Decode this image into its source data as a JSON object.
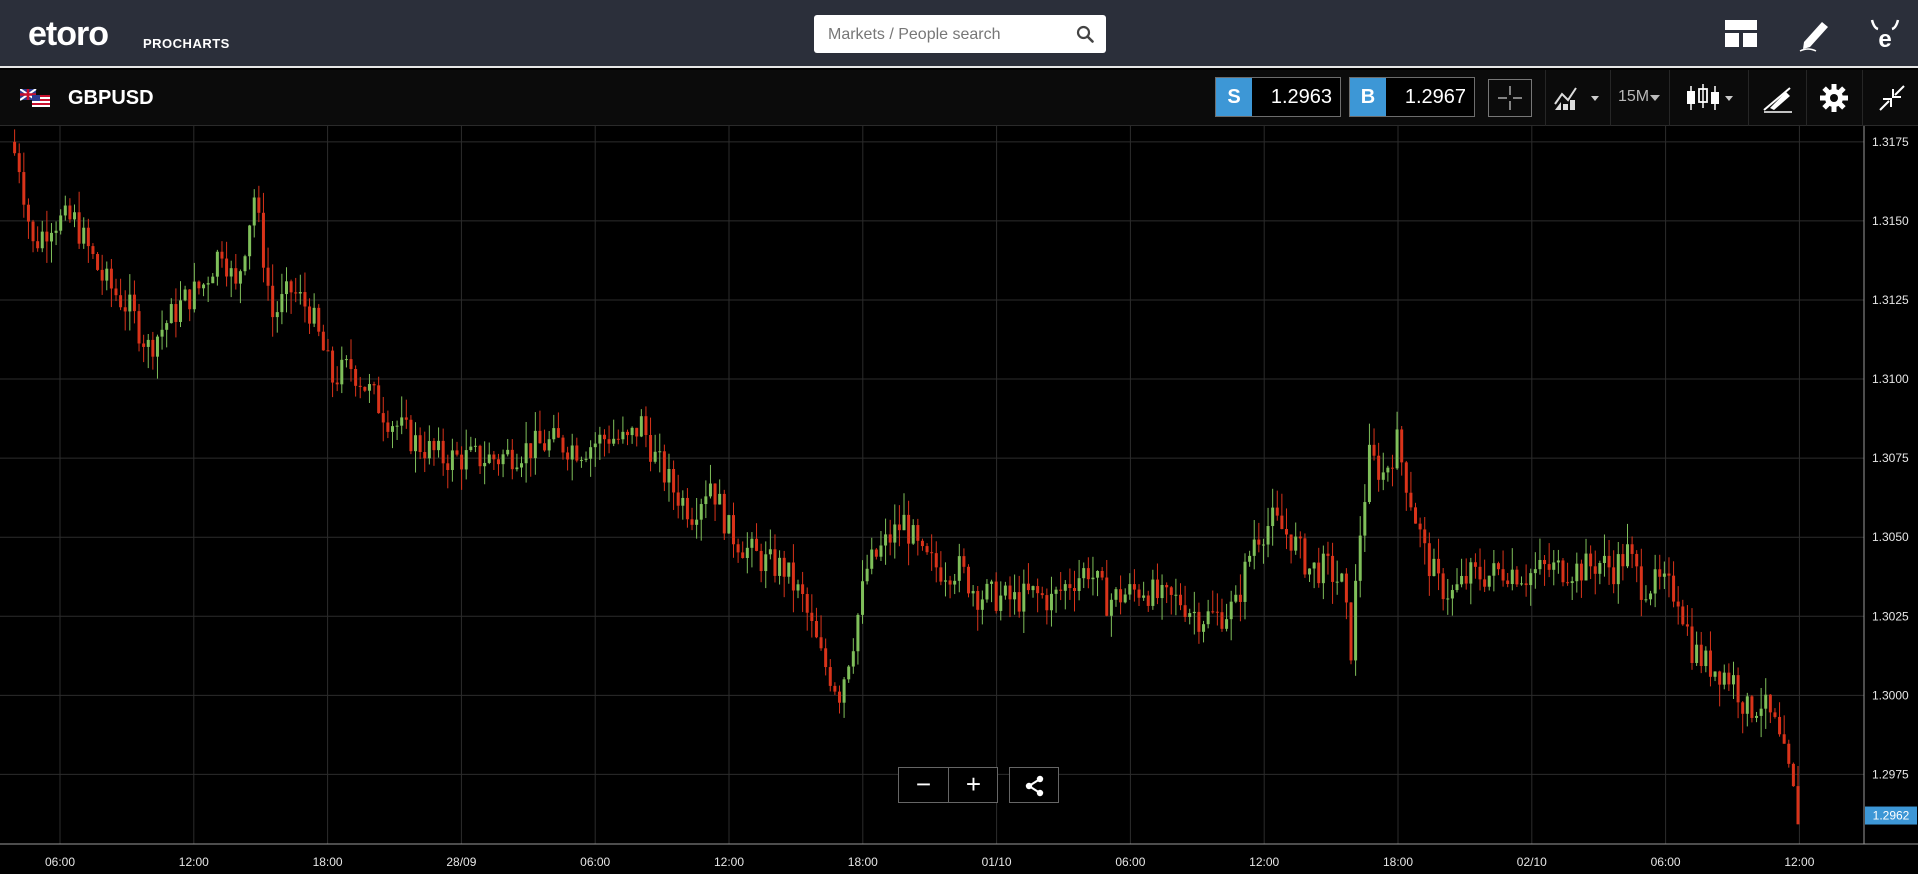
{
  "header": {
    "logo_text": "etoro",
    "logo_sub": "PROCHARTS",
    "search": {
      "placeholder": "Markets / People search"
    },
    "icons": [
      "layout-icon",
      "pencil-icon",
      "etoro-user-icon"
    ]
  },
  "instrument": {
    "symbol": "GBPUSD",
    "sell": {
      "label": "S",
      "price": "1.2963"
    },
    "buy": {
      "label": "B",
      "price": "1.2967"
    },
    "interval": "15M"
  },
  "colors": {
    "background": "#000000",
    "up": "#7fbf5a",
    "down": "#d9331a",
    "accent": "#3d97d6",
    "grid": "#2c2c2c",
    "axis_text": "#e6e6e6"
  },
  "chart_data": {
    "type": "candlestick",
    "title": "",
    "y_ticks": [
      "1.3175",
      "1.3150",
      "1.3125",
      "1.3100",
      "1.3075",
      "1.3050",
      "1.3025",
      "1.3000",
      "1.2975"
    ],
    "ylim": [
      1.2953,
      1.318
    ],
    "x_ticks": [
      "06:00",
      "12:00",
      "18:00",
      "28/09",
      "06:00",
      "12:00",
      "18:00",
      "01/10",
      "06:00",
      "12:00",
      "18:00",
      "02/10",
      "06:00",
      "12:00"
    ],
    "last_price": "1.2962",
    "close_path": [
      [
        0,
        1.3175
      ],
      [
        2,
        1.3168
      ],
      [
        5,
        1.3142
      ],
      [
        9,
        1.315
      ],
      [
        14,
        1.315
      ],
      [
        20,
        1.3132
      ],
      [
        26,
        1.3122
      ],
      [
        30,
        1.311
      ],
      [
        34,
        1.3118
      ],
      [
        38,
        1.3125
      ],
      [
        42,
        1.313
      ],
      [
        46,
        1.3142
      ],
      [
        49,
        1.3128
      ],
      [
        53,
        1.3158
      ],
      [
        57,
        1.312
      ],
      [
        61,
        1.3128
      ],
      [
        65,
        1.3122
      ],
      [
        70,
        1.31
      ],
      [
        74,
        1.3104
      ],
      [
        78,
        1.3096
      ],
      [
        82,
        1.3088
      ],
      [
        88,
        1.308
      ],
      [
        94,
        1.3075
      ],
      [
        100,
        1.3075
      ],
      [
        106,
        1.3075
      ],
      [
        112,
        1.3078
      ],
      [
        118,
        1.308
      ],
      [
        124,
        1.3078
      ],
      [
        130,
        1.3082
      ],
      [
        134,
        1.308
      ],
      [
        137,
        1.3086
      ],
      [
        140,
        1.3075
      ],
      [
        144,
        1.3065
      ],
      [
        148,
        1.3058
      ],
      [
        152,
        1.3068
      ],
      [
        156,
        1.3052
      ],
      [
        160,
        1.3046
      ],
      [
        164,
        1.3042
      ],
      [
        168,
        1.304
      ],
      [
        172,
        1.303
      ],
      [
        176,
        1.3012
      ],
      [
        180,
        1.3001
      ],
      [
        183,
        1.3018
      ],
      [
        186,
        1.304
      ],
      [
        190,
        1.3048
      ],
      [
        194,
        1.3055
      ],
      [
        198,
        1.3043
      ],
      [
        202,
        1.304
      ],
      [
        206,
        1.304
      ],
      [
        210,
        1.3032
      ],
      [
        214,
        1.3031
      ],
      [
        218,
        1.303
      ],
      [
        222,
        1.3032
      ],
      [
        226,
        1.303
      ],
      [
        230,
        1.3036
      ],
      [
        234,
        1.304
      ],
      [
        238,
        1.303
      ],
      [
        242,
        1.3032
      ],
      [
        246,
        1.3034
      ],
      [
        250,
        1.303
      ],
      [
        254,
        1.303
      ],
      [
        258,
        1.3025
      ],
      [
        262,
        1.3025
      ],
      [
        266,
        1.3028
      ],
      [
        270,
        1.305
      ],
      [
        274,
        1.3055
      ],
      [
        278,
        1.305
      ],
      [
        282,
        1.304
      ],
      [
        286,
        1.304
      ],
      [
        289,
        1.3035
      ],
      [
        291,
        1.3015
      ],
      [
        293,
        1.3052
      ],
      [
        295,
        1.3075
      ],
      [
        298,
        1.307
      ],
      [
        301,
        1.308
      ],
      [
        304,
        1.3062
      ],
      [
        307,
        1.3045
      ],
      [
        310,
        1.3035
      ],
      [
        313,
        1.3032
      ],
      [
        317,
        1.3038
      ],
      [
        321,
        1.3038
      ],
      [
        325,
        1.304
      ],
      [
        329,
        1.3038
      ],
      [
        333,
        1.304
      ],
      [
        337,
        1.304
      ],
      [
        341,
        1.304
      ],
      [
        345,
        1.3042
      ],
      [
        348,
        1.304
      ],
      [
        351,
        1.3045
      ],
      [
        354,
        1.3035
      ],
      [
        358,
        1.3035
      ],
      [
        362,
        1.3032
      ],
      [
        365,
        1.3015
      ],
      [
        368,
        1.301
      ],
      [
        371,
        1.3008
      ],
      [
        374,
        1.3005
      ],
      [
        377,
        1.2995
      ],
      [
        380,
        1.2998
      ],
      [
        383,
        1.299
      ],
      [
        386,
        1.2975
      ],
      [
        388,
        1.2962
      ]
    ]
  },
  "controls": {
    "zoom_out": "−",
    "zoom_in": "+"
  }
}
